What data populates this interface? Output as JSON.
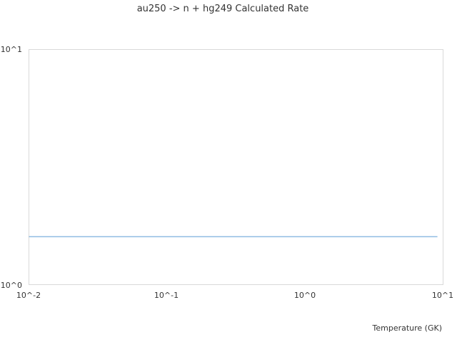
{
  "chart_data": {
    "type": "line",
    "title": "au250 -> n + hg249 Calculated Rate",
    "xlabel": "Temperature (GK)",
    "ylabel": "",
    "xscale": "log",
    "yscale": "log",
    "xlim": [
      0.01,
      10
    ],
    "ylim": [
      1,
      10
    ],
    "x_ticks": [
      "10^-2",
      "10^-1",
      "10^0",
      "10^1"
    ],
    "y_ticks": [
      "10^0",
      "10^1"
    ],
    "grid": false,
    "series": [
      {
        "color": "#5b9bd5",
        "x": [
          0.01,
          9.1
        ],
        "y": [
          1.6,
          1.6
        ]
      }
    ]
  }
}
